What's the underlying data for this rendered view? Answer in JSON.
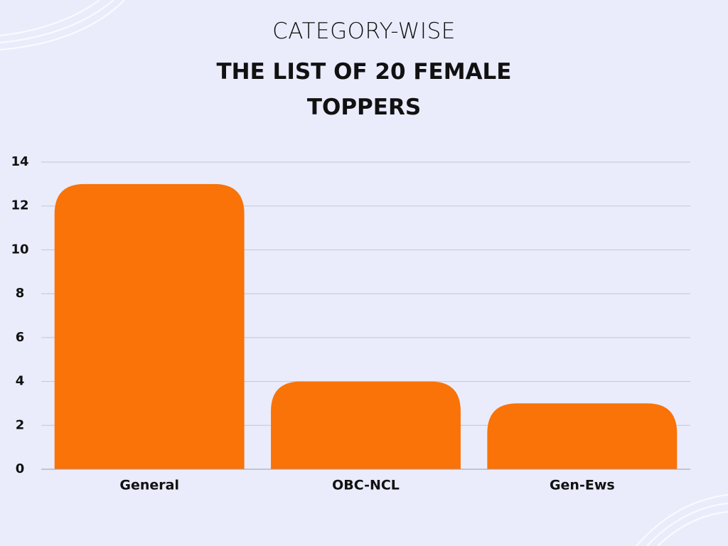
{
  "chart_data": {
    "type": "bar",
    "title": "CATEGORY-WISE",
    "subtitle": "THE LIST OF 20 FEMALE TOPPERS",
    "categories": [
      "General",
      "OBC-NCL",
      "Gen-Ews"
    ],
    "values": [
      13,
      4,
      3
    ],
    "color": "#f97308",
    "ylim": [
      0,
      14
    ],
    "yticks": [
      0,
      2,
      4,
      6,
      8,
      10,
      12,
      14
    ],
    "grid": true
  }
}
